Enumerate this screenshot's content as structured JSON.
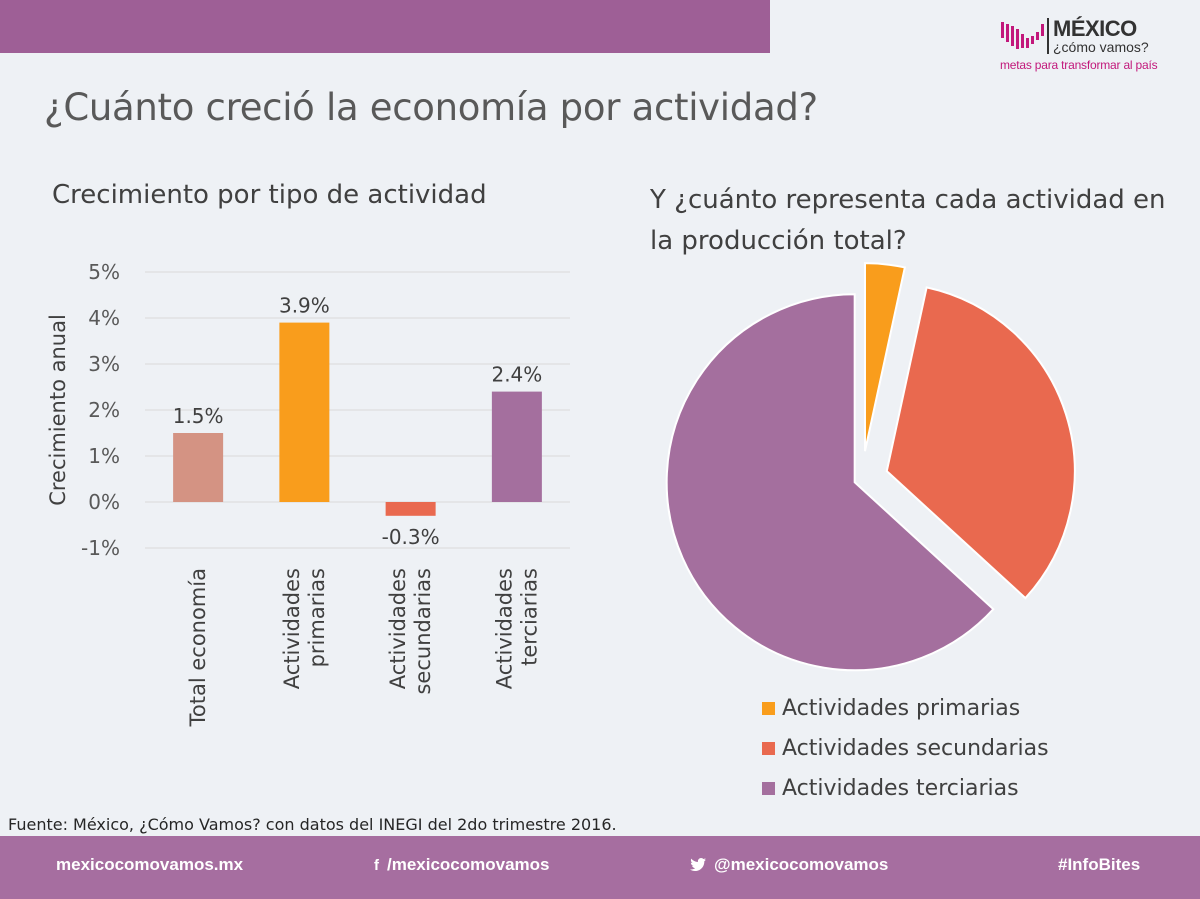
{
  "header": {
    "logo_title": "MÉXICO",
    "logo_subtitle": "¿cómo vamos?",
    "logo_tagline": "metas para transformar al país"
  },
  "page_title": "¿Cuánto creció la economía por actividad?",
  "source": "Fuente: México, ¿Cómo Vamos? con datos del INEGI del 2do trimestre 2016.",
  "footer": {
    "website": "mexicocomovamos.mx",
    "facebook": "/mexicocomovamos",
    "twitter": "@mexicocomovamos",
    "hashtag": "#InfoBites"
  },
  "colors": {
    "header_bar": "#9e5f96",
    "footer_bar": "#a66ea0",
    "total": "#d49383",
    "primarias": "#f99d1c",
    "secundarias": "#e9694f",
    "terciarias": "#a46f9e"
  },
  "chart_data": [
    {
      "type": "bar",
      "title": "Crecimiento por tipo de actividad",
      "xlabel": "",
      "ylabel": "Crecimiento anual",
      "categories": [
        [
          "Total economía"
        ],
        [
          "Actividades",
          "primarias"
        ],
        [
          "Actividades",
          "secundarias"
        ],
        [
          "Actividades",
          "terciarias"
        ]
      ],
      "values": [
        1.5,
        3.9,
        -0.3,
        2.4
      ],
      "data_labels": [
        "1.5%",
        "3.9%",
        "-0.3%",
        "2.4%"
      ],
      "colors": [
        "#d49383",
        "#f99d1c",
        "#e9694f",
        "#a46f9e"
      ],
      "ylim": [
        -1,
        5
      ],
      "yticks": [
        -1,
        0,
        1,
        2,
        3,
        4,
        5
      ],
      "ytick_labels": [
        "-1%",
        "0%",
        "1%",
        "2%",
        "3%",
        "4%",
        "5%"
      ],
      "grid": true,
      "legend": "none"
    },
    {
      "type": "pie",
      "title": "Y ¿cuánto representa cada actividad en la producción total?",
      "labels": [
        "Actividades primarias",
        "Actividades secundarias",
        "Actividades terciarias"
      ],
      "values": [
        3.4,
        33.4,
        63.2
      ],
      "colors": [
        "#f99d1c",
        "#e9694f",
        "#a46f9e"
      ],
      "exploded": true,
      "legend": "bottom"
    }
  ]
}
